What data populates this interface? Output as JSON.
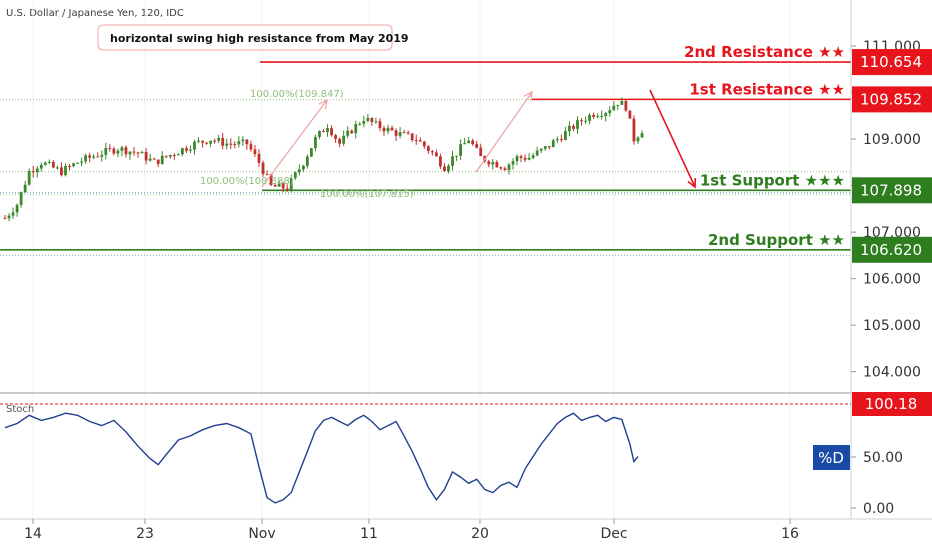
{
  "header": {
    "title": "U.S. Dollar / Japanese Yen, 120, IDC"
  },
  "annotation": {
    "text": "horizontal swing high resistance from May 2019"
  },
  "chart_data": {
    "type": "candlestick",
    "ylim": [
      103.8,
      111.3
    ],
    "y_ticks": [
      "111.000",
      "110.000",
      "109.000",
      "108.000",
      "107.000",
      "106.000",
      "105.000",
      "104.000"
    ],
    "x_tick_labels": [
      "14",
      "23",
      "Nov",
      "11",
      "20",
      "Dec",
      "16"
    ],
    "price_path": [
      [
        0,
        107.3
      ],
      [
        3,
        107.6
      ],
      [
        6,
        108.3
      ],
      [
        9,
        108.5
      ],
      [
        14,
        108.3
      ],
      [
        18,
        108.5
      ],
      [
        24,
        108.7
      ],
      [
        28,
        108.8
      ],
      [
        33,
        108.7
      ],
      [
        37,
        108.5
      ],
      [
        42,
        108.7
      ],
      [
        47,
        108.9
      ],
      [
        51,
        109.0
      ],
      [
        55,
        108.9
      ],
      [
        60,
        108.9
      ],
      [
        63,
        108.5
      ],
      [
        66,
        107.98
      ],
      [
        70,
        107.95
      ],
      [
        74,
        108.5
      ],
      [
        77,
        109.0
      ],
      [
        80,
        109.3
      ],
      [
        83,
        108.9
      ],
      [
        86,
        109.2
      ],
      [
        89,
        109.45
      ],
      [
        92,
        109.3
      ],
      [
        95,
        109.2
      ],
      [
        98,
        109.1
      ],
      [
        102,
        109.0
      ],
      [
        106,
        108.7
      ],
      [
        109,
        108.4
      ],
      [
        112,
        108.7
      ],
      [
        115,
        109.0
      ],
      [
        118,
        108.6
      ],
      [
        121,
        108.5
      ],
      [
        124,
        108.4
      ],
      [
        127,
        108.6
      ],
      [
        130,
        108.6
      ],
      [
        134,
        108.8
      ],
      [
        137,
        109.0
      ],
      [
        140,
        109.2
      ],
      [
        143,
        109.4
      ],
      [
        146,
        109.55
      ],
      [
        149,
        109.6
      ],
      [
        152,
        109.8
      ],
      [
        154,
        109.7
      ],
      [
        156,
        109.0
      ],
      [
        158,
        109.2
      ]
    ],
    "levels": [
      {
        "name": "2nd Resistance ★★",
        "value": "110.654",
        "price": 110.654,
        "color": "#e8141c"
      },
      {
        "name": "1st Resistance ★★",
        "value": "109.852",
        "price": 109.852,
        "color": "#e8141c"
      },
      {
        "name": "1st Support ★★★",
        "value": "107.898",
        "price": 107.898,
        "color": "#2e7d1e"
      },
      {
        "name": "2nd Support ★★",
        "value": "106.620",
        "price": 106.62,
        "color": "#2e7d1e"
      }
    ],
    "fib_labels": [
      "100.00%(109.847)",
      "100.00%(108.388)",
      "100.00%(107.815)"
    ],
    "indicator": {
      "name": "Stoch",
      "ylim": [
        0,
        100
      ],
      "y_ticks": [
        "50.00",
        "0.00"
      ],
      "level": "100.18",
      "series_label": "%D",
      "values": [
        [
          0,
          78
        ],
        [
          3,
          82
        ],
        [
          6,
          90
        ],
        [
          9,
          85
        ],
        [
          12,
          88
        ],
        [
          15,
          92
        ],
        [
          18,
          90
        ],
        [
          21,
          84
        ],
        [
          24,
          80
        ],
        [
          27,
          85
        ],
        [
          30,
          74
        ],
        [
          33,
          60
        ],
        [
          36,
          48
        ],
        [
          38,
          42
        ],
        [
          40,
          52
        ],
        [
          43,
          66
        ],
        [
          46,
          70
        ],
        [
          49,
          76
        ],
        [
          52,
          80
        ],
        [
          55,
          82
        ],
        [
          58,
          78
        ],
        [
          61,
          72
        ],
        [
          63,
          40
        ],
        [
          65,
          10
        ],
        [
          67,
          5
        ],
        [
          69,
          8
        ],
        [
          71,
          15
        ],
        [
          73,
          35
        ],
        [
          75,
          55
        ],
        [
          77,
          75
        ],
        [
          79,
          85
        ],
        [
          81,
          88
        ],
        [
          83,
          84
        ],
        [
          85,
          80
        ],
        [
          87,
          86
        ],
        [
          89,
          90
        ],
        [
          91,
          84
        ],
        [
          93,
          76
        ],
        [
          95,
          80
        ],
        [
          97,
          84
        ],
        [
          99,
          70
        ],
        [
          101,
          55
        ],
        [
          103,
          38
        ],
        [
          105,
          20
        ],
        [
          107,
          8
        ],
        [
          109,
          18
        ],
        [
          111,
          35
        ],
        [
          113,
          30
        ],
        [
          115,
          24
        ],
        [
          117,
          28
        ],
        [
          119,
          18
        ],
        [
          121,
          15
        ],
        [
          123,
          22
        ],
        [
          125,
          25
        ],
        [
          127,
          20
        ],
        [
          129,
          38
        ],
        [
          131,
          50
        ],
        [
          133,
          62
        ],
        [
          135,
          72
        ],
        [
          137,
          82
        ],
        [
          139,
          88
        ],
        [
          141,
          92
        ],
        [
          143,
          85
        ],
        [
          145,
          88
        ],
        [
          147,
          90
        ],
        [
          149,
          84
        ],
        [
          151,
          88
        ],
        [
          153,
          86
        ],
        [
          155,
          62
        ],
        [
          156,
          45
        ],
        [
          157,
          50
        ]
      ]
    }
  },
  "colors": {
    "candle_up": "#3a8a2c",
    "candle_down": "#c2302b",
    "fib": "#8fbf7a",
    "indicator_line": "#1f3f8f",
    "trend_arrow": "#f0a0a0"
  }
}
